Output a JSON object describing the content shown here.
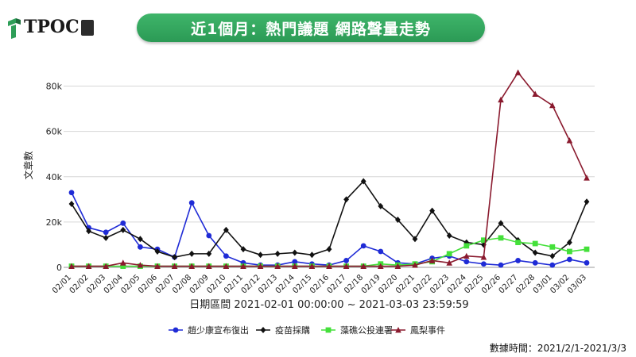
{
  "header": {
    "logo_text": "TPOC",
    "title": "近1個月：熱門議題 網路聲量走勢"
  },
  "footer": {
    "data_time": "數據時間：2021/2/1-2021/3/3"
  },
  "chart_data": {
    "type": "line",
    "title": "近1個月：熱門議題 網路聲量走勢",
    "xlabel": "日期區間 2021-02-01 00:00:00 ~ 2021-03-03 23:59:59",
    "ylabel": "文章數",
    "ylim": [
      0,
      90000
    ],
    "yticks": [
      0,
      20000,
      40000,
      60000,
      80000
    ],
    "ytick_labels": [
      "0",
      "20k",
      "40k",
      "60k",
      "80k"
    ],
    "grid": true,
    "legend_position": "bottom",
    "categories": [
      "02/01",
      "02/02",
      "02/03",
      "02/04",
      "02/05",
      "02/06",
      "02/07",
      "02/08",
      "02/09",
      "02/10",
      "02/11",
      "02/12",
      "02/13",
      "02/14",
      "02/15",
      "02/16",
      "02/17",
      "02/18",
      "02/19",
      "02/20",
      "02/21",
      "02/22",
      "02/23",
      "02/24",
      "02/25",
      "02/26",
      "02/27",
      "02/28",
      "03/01",
      "03/02",
      "03/03"
    ],
    "series": [
      {
        "name": "趙少康宣布復出",
        "color": "#1f2bd6",
        "marker": "circle",
        "values": [
          33000,
          17500,
          15500,
          19500,
          9000,
          8000,
          4500,
          28500,
          14000,
          5000,
          2000,
          1000,
          1000,
          2500,
          1500,
          1000,
          3000,
          9500,
          7000,
          2000,
          1500,
          4000,
          5000,
          2500,
          1500,
          1000,
          3000,
          2000,
          1000,
          3500,
          2000
        ]
      },
      {
        "name": "疫苗採購",
        "color": "#111111",
        "marker": "diamond",
        "values": [
          28000,
          16000,
          13000,
          16500,
          12500,
          7000,
          4500,
          6000,
          6000,
          16500,
          8000,
          5500,
          6000,
          6500,
          5500,
          8000,
          30000,
          38000,
          27000,
          21000,
          12500,
          25000,
          14000,
          11000,
          10000,
          19500,
          12000,
          6500,
          5000,
          11000,
          29000
        ]
      },
      {
        "name": "藻礁公投連署",
        "color": "#44e03a",
        "marker": "square",
        "values": [
          500,
          500,
          500,
          500,
          500,
          500,
          500,
          500,
          500,
          500,
          500,
          500,
          500,
          500,
          500,
          500,
          500,
          500,
          1500,
          1000,
          1500,
          2500,
          6000,
          9500,
          12000,
          13000,
          11000,
          10500,
          9000,
          7000,
          8000
        ]
      },
      {
        "name": "鳳梨事件",
        "color": "#8a1a2e",
        "marker": "triangle",
        "values": [
          500,
          500,
          500,
          2000,
          1000,
          500,
          500,
          500,
          500,
          500,
          500,
          500,
          500,
          500,
          500,
          500,
          500,
          500,
          500,
          500,
          1000,
          3000,
          2000,
          5000,
          4500,
          74000,
          86000,
          76500,
          71500,
          56000,
          39500
        ]
      }
    ]
  }
}
